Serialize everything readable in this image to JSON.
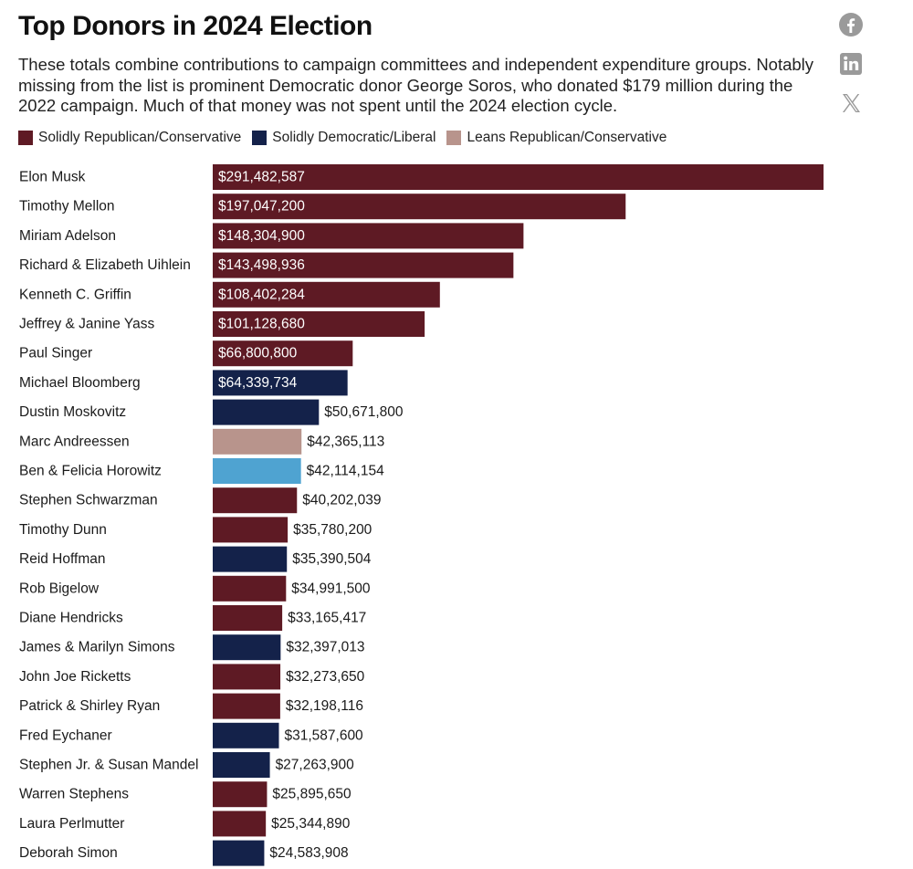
{
  "header": {
    "title": "Top Donors in 2024 Election",
    "subtitle": "These totals combine contributions to campaign committees and independent expenditure groups. Notably missing from the list is prominent Democratic donor George Soros, who donated $179 million during the 2022 campaign. Much of that money was not spent until the 2024 election cycle."
  },
  "share": [
    {
      "icon": "facebook-icon"
    },
    {
      "icon": "linkedin-icon"
    },
    {
      "icon": "x-icon"
    }
  ],
  "colors": {
    "rep": "#5e1a24",
    "dem": "#14224a",
    "lean_rep": "#b8948c",
    "other": "#4fa3d1",
    "icon_gray": "#9a9a9a"
  },
  "legend": [
    {
      "label": "Solidly Republican/Conservative",
      "color": "#5e1a24"
    },
    {
      "label": "Solidly Democratic/Liberal",
      "color": "#14224a"
    },
    {
      "label": "Leans Republican/Conservative",
      "color": "#b8948c"
    }
  ],
  "chart_data": {
    "type": "bar",
    "orientation": "horizontal",
    "title": "Top Donors in 2024 Election",
    "categories": [
      "Elon Musk",
      "Timothy Mellon",
      "Miriam Adelson",
      "Richard & Elizabeth Uihlein",
      "Kenneth C. Griffin",
      "Jeffrey & Janine Yass",
      "Paul Singer",
      "Michael Bloomberg",
      "Dustin Moskovitz",
      "Marc Andreessen",
      "Ben & Felicia Horowitz",
      "Stephen Schwarzman",
      "Timothy Dunn",
      "Reid Hoffman",
      "Rob Bigelow",
      "Diane Hendricks",
      "James & Marilyn Simons",
      "John Joe Ricketts",
      "Patrick & Shirley Ryan",
      "Fred Eychaner",
      "Stephen Jr. & Susan Mandel",
      "Warren Stephens",
      "Laura Perlmutter",
      "Deborah Simon"
    ],
    "values": [
      291482587,
      197047200,
      148304900,
      143498936,
      108402284,
      101128680,
      66800800,
      64339734,
      50671800,
      42365113,
      42114154,
      40202039,
      35780200,
      35390504,
      34991500,
      33165417,
      32397013,
      32273650,
      32198116,
      31587600,
      27263900,
      25895650,
      25344890,
      24583908
    ],
    "value_labels": [
      "$291,482,587",
      "$197,047,200",
      "$148,304,900",
      "$143,498,936",
      "$108,402,284",
      "$101,128,680",
      "$66,800,800",
      "$64,339,734",
      "$50,671,800",
      "$42,365,113",
      "$42,114,154",
      "$40,202,039",
      "$35,780,200",
      "$35,390,504",
      "$34,991,500",
      "$33,165,417",
      "$32,397,013",
      "$32,273,650",
      "$32,198,116",
      "$31,587,600",
      "$27,263,900",
      "$25,895,650",
      "$25,344,890",
      "$24,583,908"
    ],
    "affiliation": [
      "rep",
      "rep",
      "rep",
      "rep",
      "rep",
      "rep",
      "rep",
      "dem",
      "dem",
      "lean_rep",
      "other",
      "rep",
      "rep",
      "dem",
      "rep",
      "rep",
      "dem",
      "rep",
      "rep",
      "dem",
      "dem",
      "rep",
      "rep",
      "dem"
    ],
    "xlim": [
      0,
      291482587
    ],
    "grid": false,
    "legend_position": "top-left"
  }
}
